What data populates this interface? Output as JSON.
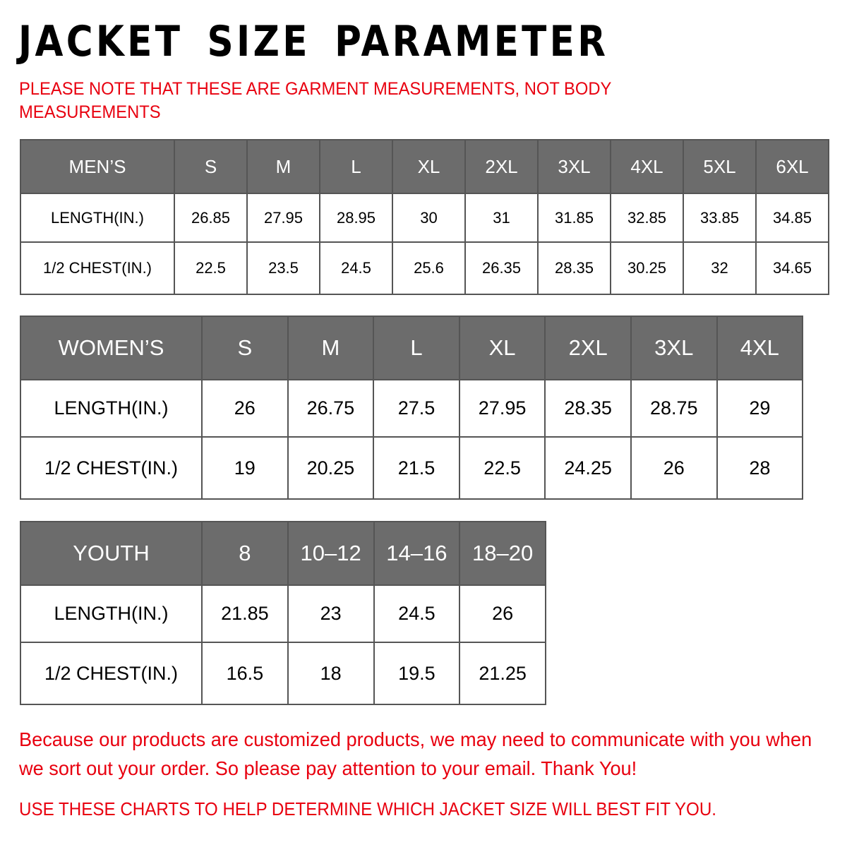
{
  "title": "JACKET SIZE PARAMETER",
  "note": "PLEASE NOTE THAT THESE ARE GARMENT MEASUREMENTS, NOT BODY MEASUREMENTS",
  "colors": {
    "header_bg": "#6c6c6c",
    "accent_red": "#e8000f"
  },
  "mens": {
    "header": [
      "MEN’S",
      "S",
      "M",
      "L",
      "XL",
      "2XL",
      "3XL",
      "4XL",
      "5XL",
      "6XL"
    ],
    "rows": [
      [
        "LENGTH(IN.)",
        "26.85",
        "27.95",
        "28.95",
        "30",
        "31",
        "31.85",
        "32.85",
        "33.85",
        "34.85"
      ],
      [
        "1/2 CHEST(IN.)",
        "22.5",
        "23.5",
        "24.5",
        "25.6",
        "26.35",
        "28.35",
        "30.25",
        "32",
        "34.65"
      ]
    ]
  },
  "womens": {
    "header": [
      "WOMEN’S",
      "S",
      "M",
      "L",
      "XL",
      "2XL",
      "3XL",
      "4XL"
    ],
    "rows": [
      [
        "LENGTH(IN.)",
        "26",
        "26.75",
        "27.5",
        "27.95",
        "28.35",
        "28.75",
        "29"
      ],
      [
        "1/2 CHEST(IN.)",
        "19",
        "20.25",
        "21.5",
        "22.5",
        "24.25",
        "26",
        "28"
      ]
    ]
  },
  "youth": {
    "header": [
      "YOUTH",
      "8",
      "10–12",
      "14–16",
      "18–20"
    ],
    "rows": [
      [
        "LENGTH(IN.)",
        "21.85",
        "23",
        "24.5",
        "26"
      ],
      [
        "1/2 CHEST(IN.)",
        "16.5",
        "18",
        "19.5",
        "21.25"
      ]
    ]
  },
  "footer": "Because our products are customized products, we may need to communicate with you when we sort out your order. So please pay attention to your email. Thank You!",
  "footer2": "USE THESE CHARTS TO HELP DETERMINE WHICH JACKET SIZE WILL BEST FIT YOU."
}
